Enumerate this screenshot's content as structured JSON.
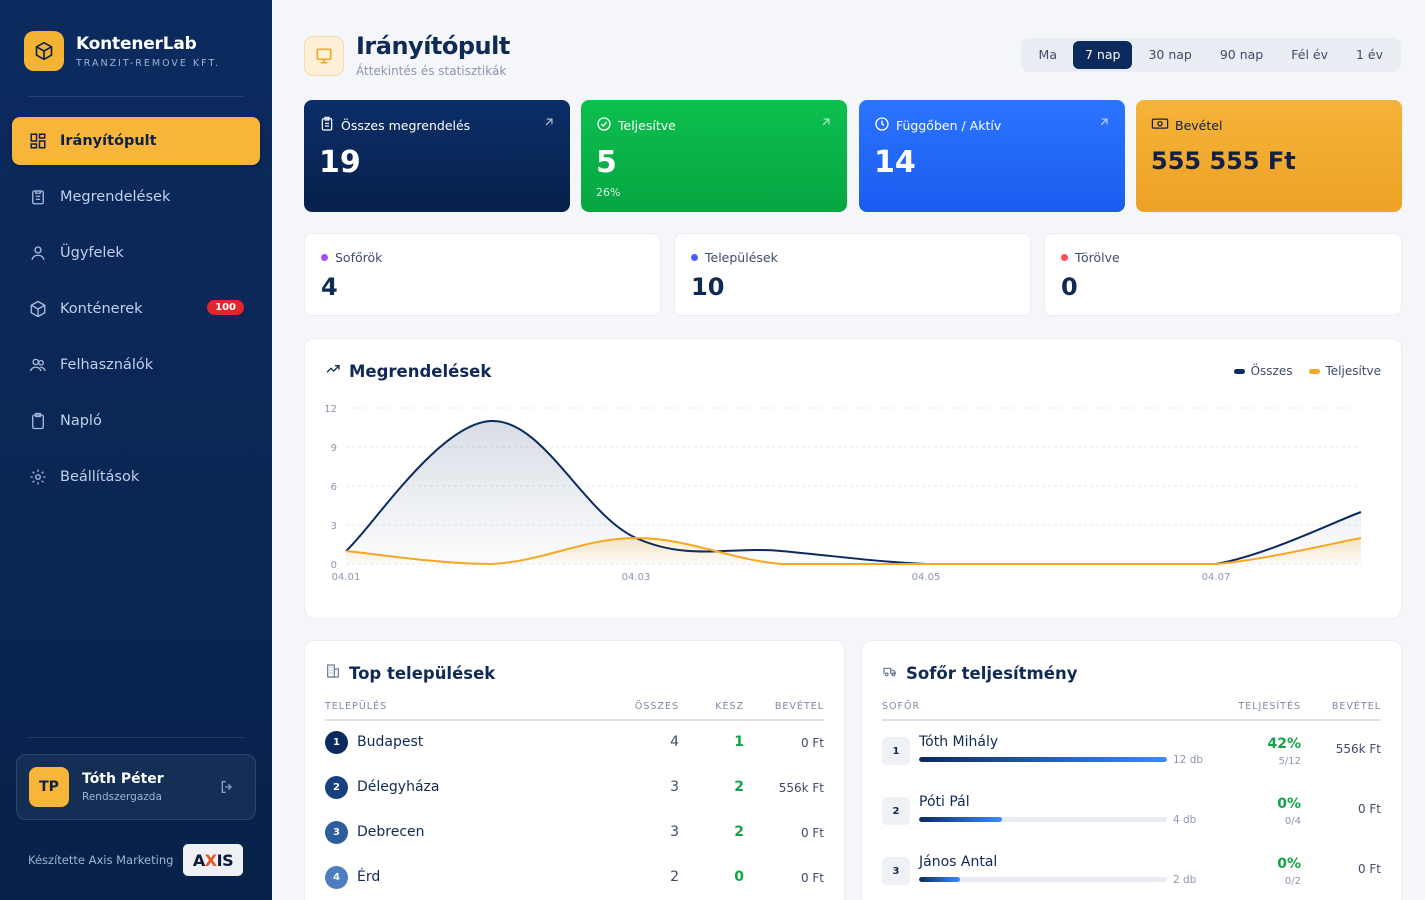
{
  "brand": {
    "name": "KontenerLab",
    "subtitle": "TRANZIT-REMOVE KFT."
  },
  "nav": [
    {
      "label": "Irányítópult",
      "icon": "dashboard-icon",
      "active": true
    },
    {
      "label": "Megrendelések",
      "icon": "clipboard-icon"
    },
    {
      "label": "Ügyfelek",
      "icon": "user-icon"
    },
    {
      "label": "Konténerek",
      "icon": "box-icon",
      "badge": "100"
    },
    {
      "label": "Felhasználók",
      "icon": "users-icon"
    },
    {
      "label": "Napló",
      "icon": "log-icon"
    },
    {
      "label": "Beállítások",
      "icon": "gear-icon"
    }
  ],
  "user": {
    "initials": "TP",
    "name": "Tóth Péter",
    "role": "Rendszergazda"
  },
  "footer": {
    "made_by": "Készítette Axis Marketing",
    "logo_a": "A",
    "logo_x": "X",
    "logo_is": "IS"
  },
  "header": {
    "title": "Irányítópult",
    "subtitle": "Áttekintés és statisztikák"
  },
  "periods": [
    "Ma",
    "7 nap",
    "30 nap",
    "90 nap",
    "Fél év",
    "1 év"
  ],
  "active_period": "7 nap",
  "stats": {
    "total": {
      "label": "Összes megrendelés",
      "value": "19"
    },
    "done": {
      "label": "Teljesítve",
      "value": "5",
      "pct": "26%"
    },
    "pending": {
      "label": "Függőben / Aktív",
      "value": "14"
    },
    "revenue": {
      "label": "Bevétel",
      "value": "555 555 Ft"
    }
  },
  "minis": {
    "drivers": {
      "label": "Sofőrök",
      "value": "4",
      "color": "#a64dff"
    },
    "towns": {
      "label": "Települések",
      "value": "10",
      "color": "#4a5bff"
    },
    "deleted": {
      "label": "Törölve",
      "value": "0",
      "color": "#ff4d5a"
    }
  },
  "chart_card": {
    "title": "Megrendelések"
  },
  "chart_data": {
    "type": "line",
    "x": [
      "04.01",
      "04.02",
      "04.03",
      "04.04",
      "04.05",
      "04.06",
      "04.07",
      "04.08"
    ],
    "tick_labels": [
      "04.01",
      "04.03",
      "04.05",
      "04.07"
    ],
    "y_ticks": [
      0,
      3,
      6,
      9,
      12
    ],
    "ylim": [
      0,
      12
    ],
    "series": [
      {
        "name": "Összes",
        "values": [
          1,
          11,
          2,
          1,
          0,
          0,
          0,
          4
        ],
        "color": "#0b2a5e"
      },
      {
        "name": "Teljesítve",
        "values": [
          1,
          0,
          2,
          0,
          0,
          0,
          0,
          2
        ],
        "color": "#f5a623"
      }
    ],
    "legend": "top-right",
    "grid": true
  },
  "towns": {
    "title": "Top települések",
    "headers": {
      "name": "TELEPÜLÉS",
      "total": "ÖSSZES",
      "done": "KÉSZ",
      "revenue": "BEVÉTEL"
    },
    "rows": [
      {
        "rank": "1",
        "name": "Budapest",
        "total": "4",
        "done": "1",
        "revenue": "0 Ft"
      },
      {
        "rank": "2",
        "name": "Délegyháza",
        "total": "3",
        "done": "2",
        "revenue": "556k Ft"
      },
      {
        "rank": "3",
        "name": "Debrecen",
        "total": "3",
        "done": "2",
        "revenue": "0 Ft"
      },
      {
        "rank": "4",
        "name": "Érd",
        "total": "2",
        "done": "0",
        "revenue": "0 Ft"
      }
    ]
  },
  "drivers": {
    "title": "Sofőr teljesítmény",
    "headers": {
      "name": "SOFŐR",
      "perf": "TELJESÍTÉS",
      "revenue": "BEVÉTEL"
    },
    "rows": [
      {
        "rank": "1",
        "name": "Tóth Mihály",
        "count": "12 db",
        "bar": 1.0,
        "pct": "42%",
        "frac": "5/12",
        "revenue": "556k Ft"
      },
      {
        "rank": "2",
        "name": "Póti Pál",
        "count": "4 db",
        "bar": 0.333,
        "pct": "0%",
        "frac": "0/4",
        "revenue": "0 Ft"
      },
      {
        "rank": "3",
        "name": "János Antal",
        "count": "2 db",
        "bar": 0.167,
        "pct": "0%",
        "frac": "0/2",
        "revenue": "0 Ft"
      }
    ]
  }
}
